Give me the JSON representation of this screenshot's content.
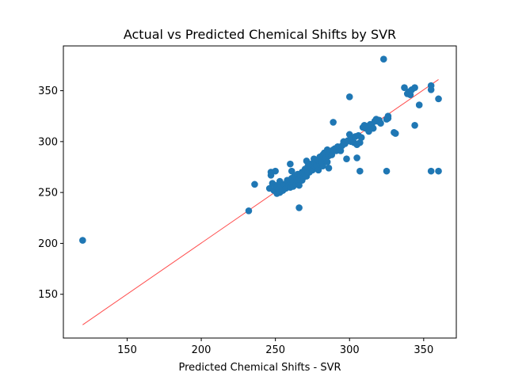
{
  "chart_data": {
    "type": "scatter",
    "title": "Actual vs Predicted Chemical Shifts by SVR",
    "xlabel": "Predicted Chemical Shifts - SVR",
    "ylabel": "",
    "xlim": [
      107,
      372
    ],
    "ylim": [
      107,
      394
    ],
    "xticks": [
      150,
      200,
      250,
      300,
      350
    ],
    "yticks": [
      150,
      200,
      250,
      300,
      350
    ],
    "grid": false,
    "point_color": "#1f77b4",
    "line_color": "#ff4d4d",
    "reference_line": {
      "x": [
        120,
        360
      ],
      "y": [
        120,
        361
      ]
    },
    "points": [
      [
        120,
        203
      ],
      [
        232,
        232
      ],
      [
        236,
        258
      ],
      [
        266,
        235
      ],
      [
        246,
        254
      ],
      [
        247,
        267
      ],
      [
        247,
        270
      ],
      [
        248,
        259
      ],
      [
        249,
        252
      ],
      [
        250,
        271
      ],
      [
        250,
        257
      ],
      [
        251,
        249
      ],
      [
        251,
        255
      ],
      [
        252,
        253
      ],
      [
        253,
        250
      ],
      [
        253,
        261
      ],
      [
        254,
        256
      ],
      [
        255,
        252
      ],
      [
        256,
        258
      ],
      [
        257,
        254
      ],
      [
        258,
        259
      ],
      [
        258,
        262
      ],
      [
        259,
        257
      ],
      [
        260,
        255
      ],
      [
        260,
        278
      ],
      [
        261,
        271
      ],
      [
        261,
        264
      ],
      [
        262,
        256
      ],
      [
        262,
        261
      ],
      [
        263,
        266
      ],
      [
        264,
        258
      ],
      [
        265,
        262
      ],
      [
        265,
        268
      ],
      [
        266,
        257
      ],
      [
        266,
        264
      ],
      [
        267,
        266
      ],
      [
        268,
        262
      ],
      [
        268,
        270
      ],
      [
        269,
        265
      ],
      [
        270,
        268
      ],
      [
        270,
        273
      ],
      [
        271,
        281
      ],
      [
        271,
        266
      ],
      [
        272,
        270
      ],
      [
        272,
        276
      ],
      [
        273,
        278
      ],
      [
        273,
        270
      ],
      [
        274,
        274
      ],
      [
        275,
        272
      ],
      [
        275,
        277
      ],
      [
        276,
        280
      ],
      [
        276,
        283
      ],
      [
        277,
        275
      ],
      [
        278,
        279
      ],
      [
        278,
        276
      ],
      [
        279,
        282
      ],
      [
        279,
        272
      ],
      [
        280,
        278
      ],
      [
        280,
        285
      ],
      [
        281,
        280
      ],
      [
        282,
        287
      ],
      [
        282,
        276
      ],
      [
        283,
        282
      ],
      [
        283,
        289
      ],
      [
        284,
        284
      ],
      [
        285,
        280
      ],
      [
        285,
        292
      ],
      [
        286,
        274
      ],
      [
        286,
        286
      ],
      [
        287,
        290
      ],
      [
        288,
        287
      ],
      [
        289,
        319
      ],
      [
        289,
        292
      ],
      [
        290,
        293
      ],
      [
        291,
        291
      ],
      [
        292,
        295
      ],
      [
        293,
        294
      ],
      [
        294,
        291
      ],
      [
        295,
        296
      ],
      [
        296,
        300
      ],
      [
        297,
        298
      ],
      [
        298,
        283
      ],
      [
        299,
        301
      ],
      [
        300,
        307
      ],
      [
        300,
        344
      ],
      [
        301,
        300
      ],
      [
        302,
        303
      ],
      [
        303,
        299
      ],
      [
        304,
        305
      ],
      [
        305,
        284
      ],
      [
        305,
        297
      ],
      [
        306,
        306
      ],
      [
        307,
        271
      ],
      [
        307,
        299
      ],
      [
        308,
        304
      ],
      [
        309,
        314
      ],
      [
        310,
        316
      ],
      [
        311,
        313
      ],
      [
        312,
        315
      ],
      [
        313,
        310
      ],
      [
        314,
        317
      ],
      [
        315,
        316
      ],
      [
        316,
        313
      ],
      [
        317,
        320
      ],
      [
        318,
        322
      ],
      [
        319,
        320
      ],
      [
        320,
        321
      ],
      [
        321,
        318
      ],
      [
        323,
        381
      ],
      [
        325,
        271
      ],
      [
        325,
        322
      ],
      [
        326,
        325
      ],
      [
        326,
        323
      ],
      [
        330,
        309
      ],
      [
        331,
        308
      ],
      [
        337,
        353
      ],
      [
        339,
        347
      ],
      [
        340,
        349
      ],
      [
        341,
        346
      ],
      [
        342,
        351
      ],
      [
        344,
        353
      ],
      [
        344,
        316
      ],
      [
        347,
        336
      ],
      [
        355,
        351
      ],
      [
        355,
        355
      ],
      [
        355,
        271
      ],
      [
        360,
        342
      ],
      [
        360,
        271
      ]
    ]
  }
}
